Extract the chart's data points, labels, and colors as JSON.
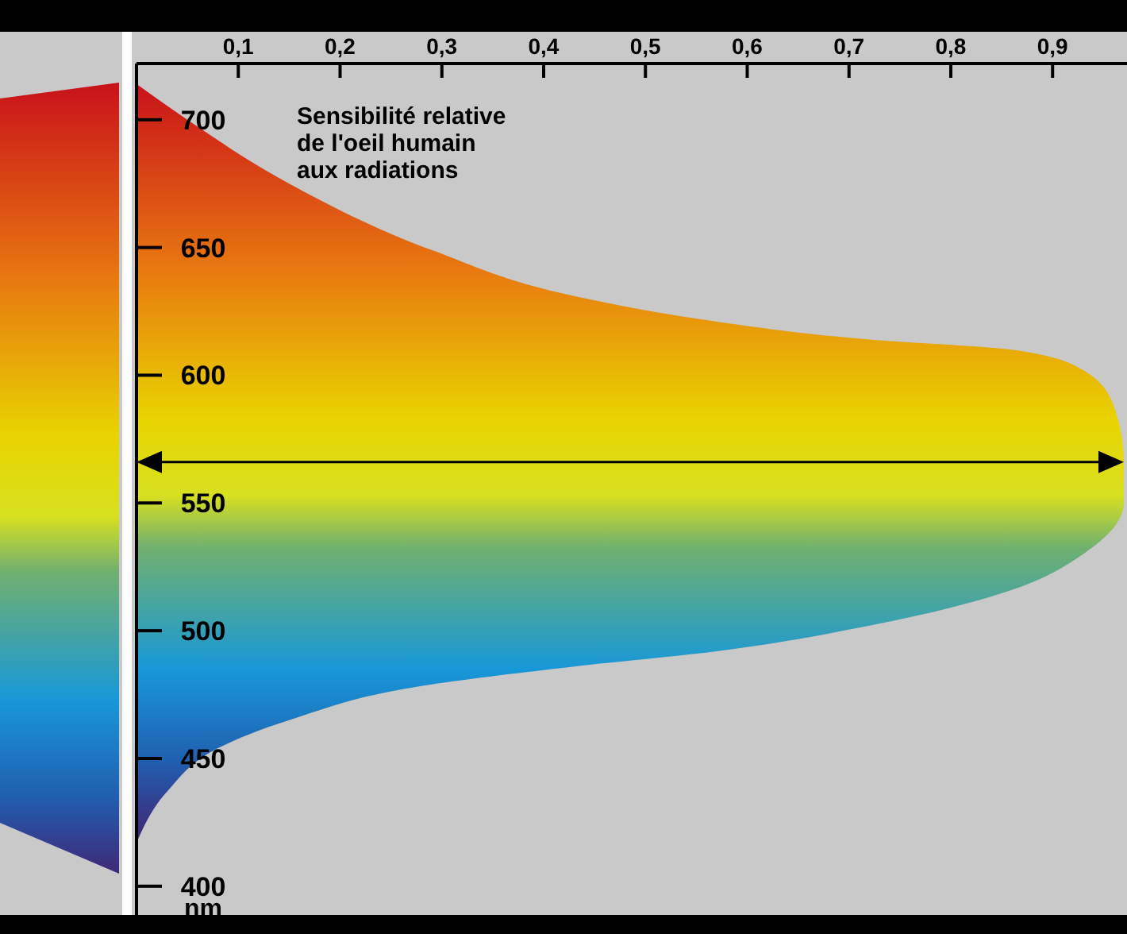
{
  "chart_data": {
    "type": "area",
    "orientation": "horizontal",
    "title": "Sensibilité relative de l'oeil humain aux radiations",
    "ylabel": "nm",
    "x": [
      417,
      437,
      454,
      465,
      479,
      486,
      492,
      502,
      516,
      530,
      550,
      566,
      588,
      602,
      610,
      614,
      621,
      631,
      649,
      675,
      700,
      714
    ],
    "series": [
      {
        "color": "#e8d400",
        "values": [
          0,
          0.03,
          0.08,
          0.15,
          0.29,
          0.43,
          0.57,
          0.72,
          0.86,
          0.93,
          0.97,
          0.97,
          0.96,
          0.93,
          0.86,
          0.72,
          0.57,
          0.43,
          0.29,
          0.15,
          0.05,
          0
        ]
      }
    ],
    "xlim": [
      0,
      0.97
    ],
    "xticks": [
      {
        "value": 0.1,
        "label": "0,1"
      },
      {
        "value": 0.2,
        "label": "0,2"
      },
      {
        "value": 0.3,
        "label": "0,3"
      },
      {
        "value": 0.4,
        "label": "0,4"
      },
      {
        "value": 0.5,
        "label": "0,5"
      },
      {
        "value": 0.6,
        "label": "0,6"
      },
      {
        "value": 0.7,
        "label": "0,7"
      },
      {
        "value": 0.8,
        "label": "0,8"
      },
      {
        "value": 0.9,
        "label": "0,9"
      }
    ],
    "ylim": [
      390,
      722
    ],
    "yticks": [
      400,
      450,
      500,
      550,
      600,
      650,
      700
    ],
    "ref_lines": [
      {
        "axis": "y",
        "value": 566
      }
    ],
    "grid": false
  }
}
